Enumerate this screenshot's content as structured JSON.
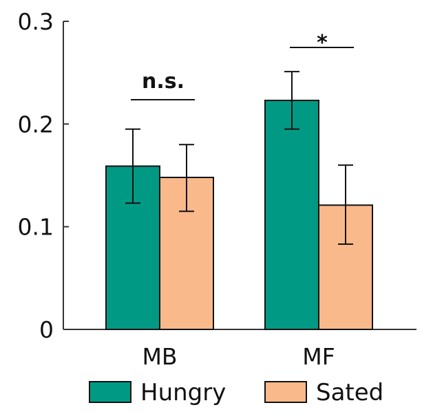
{
  "chart_data": {
    "type": "bar",
    "categories": [
      "MB",
      "MF"
    ],
    "series": [
      {
        "name": "Hungry",
        "color": "#009a84",
        "values": [
          0.159,
          0.223
        ],
        "error_low": [
          0.123,
          0.195
        ],
        "error_high": [
          0.195,
          0.251
        ]
      },
      {
        "name": "Sated",
        "color": "#f9b98a",
        "values": [
          0.148,
          0.121
        ],
        "error_low": [
          0.115,
          0.083
        ],
        "error_high": [
          0.18,
          0.16
        ]
      }
    ],
    "ylim": [
      0,
      0.3
    ],
    "yticks": [
      "0",
      "0.1",
      "0.2",
      "0.3"
    ],
    "ytick_values": [
      0,
      0.1,
      0.2,
      0.3
    ],
    "annotations": [
      {
        "category": "MB",
        "label": "n.s."
      },
      {
        "category": "MF",
        "label": "*"
      }
    ],
    "legend_position": "bottom",
    "grid": false,
    "title": "",
    "xlabel": "",
    "ylabel": ""
  }
}
